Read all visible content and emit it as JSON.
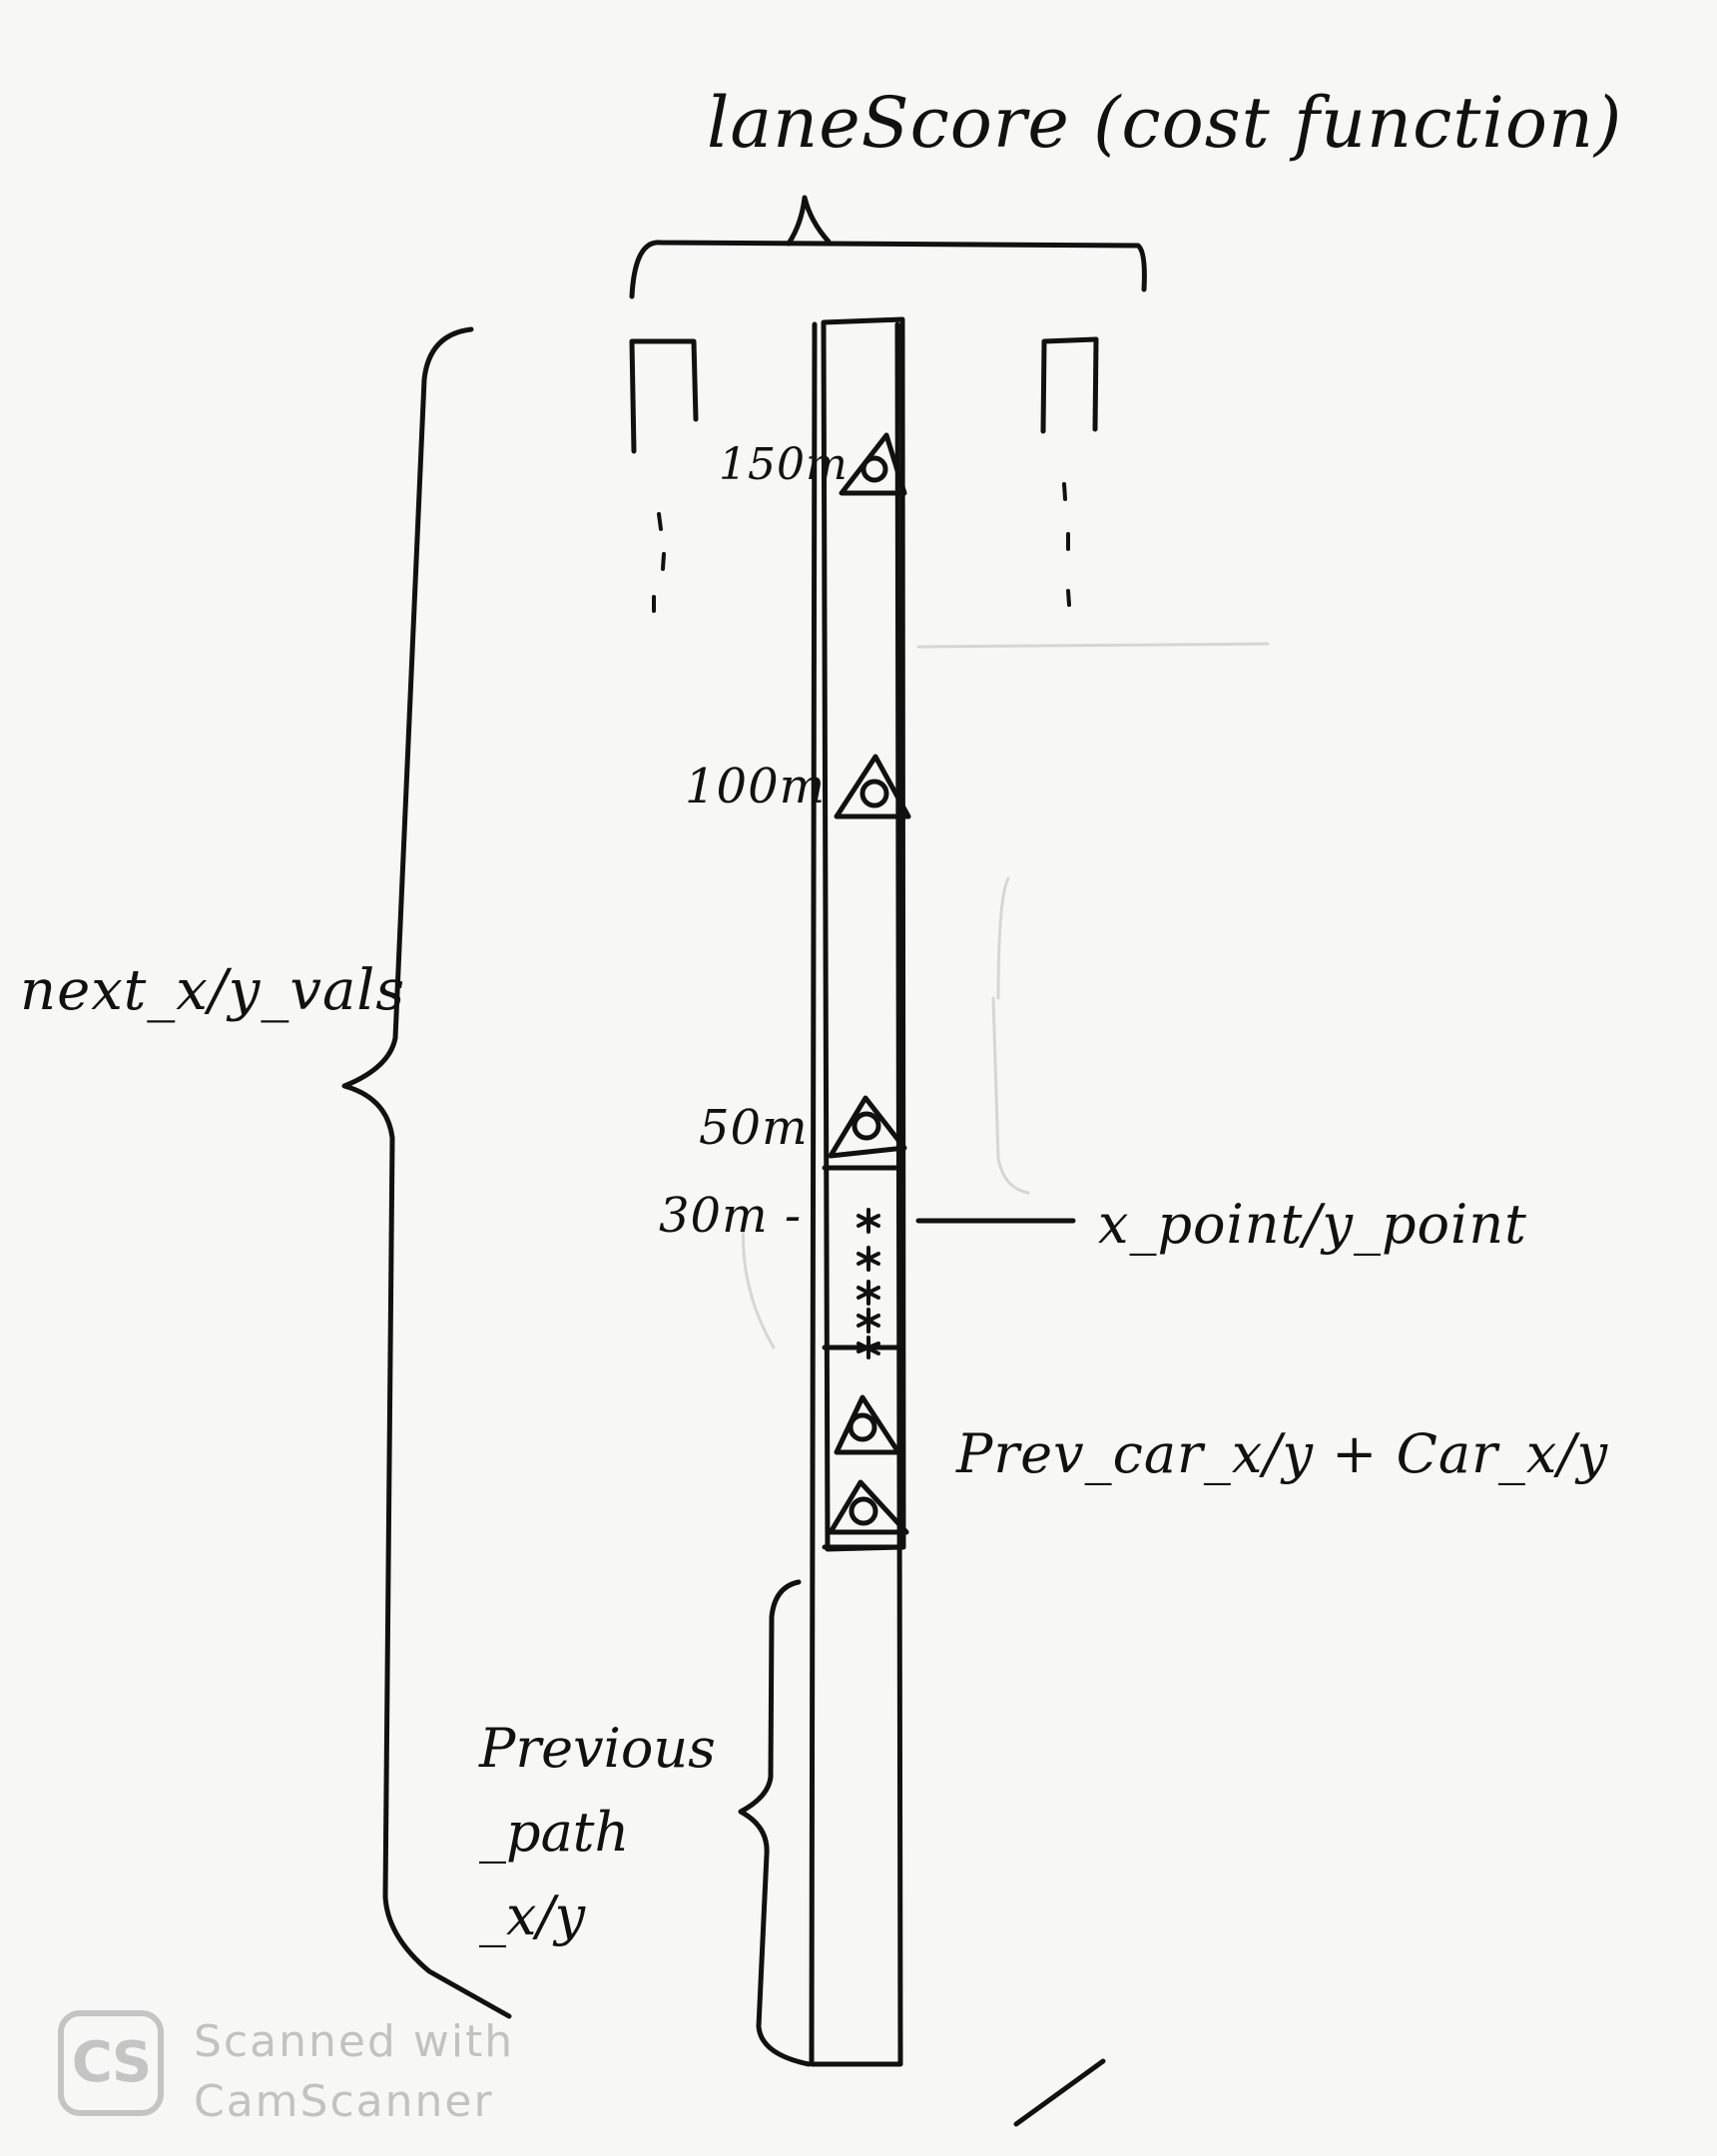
{
  "title": "laneScore (cost function)",
  "distances": {
    "d150": "150m",
    "d100": "100m",
    "d50": "50m",
    "d30": "30m -"
  },
  "labels": {
    "next_vals": "next_x/y_vals",
    "point": "x_point/y_point",
    "prev_car": "Prev_car_x/y + Car_x/y",
    "previous_path": [
      "Previous",
      "_path",
      "_x/y"
    ]
  },
  "watermark": {
    "logo": "CS",
    "line1": "Scanned with",
    "line2": "CamScanner"
  },
  "colors": {
    "ink": "#111111",
    "paper": "#f7f7f5",
    "watermark": "#c4c4c4"
  }
}
